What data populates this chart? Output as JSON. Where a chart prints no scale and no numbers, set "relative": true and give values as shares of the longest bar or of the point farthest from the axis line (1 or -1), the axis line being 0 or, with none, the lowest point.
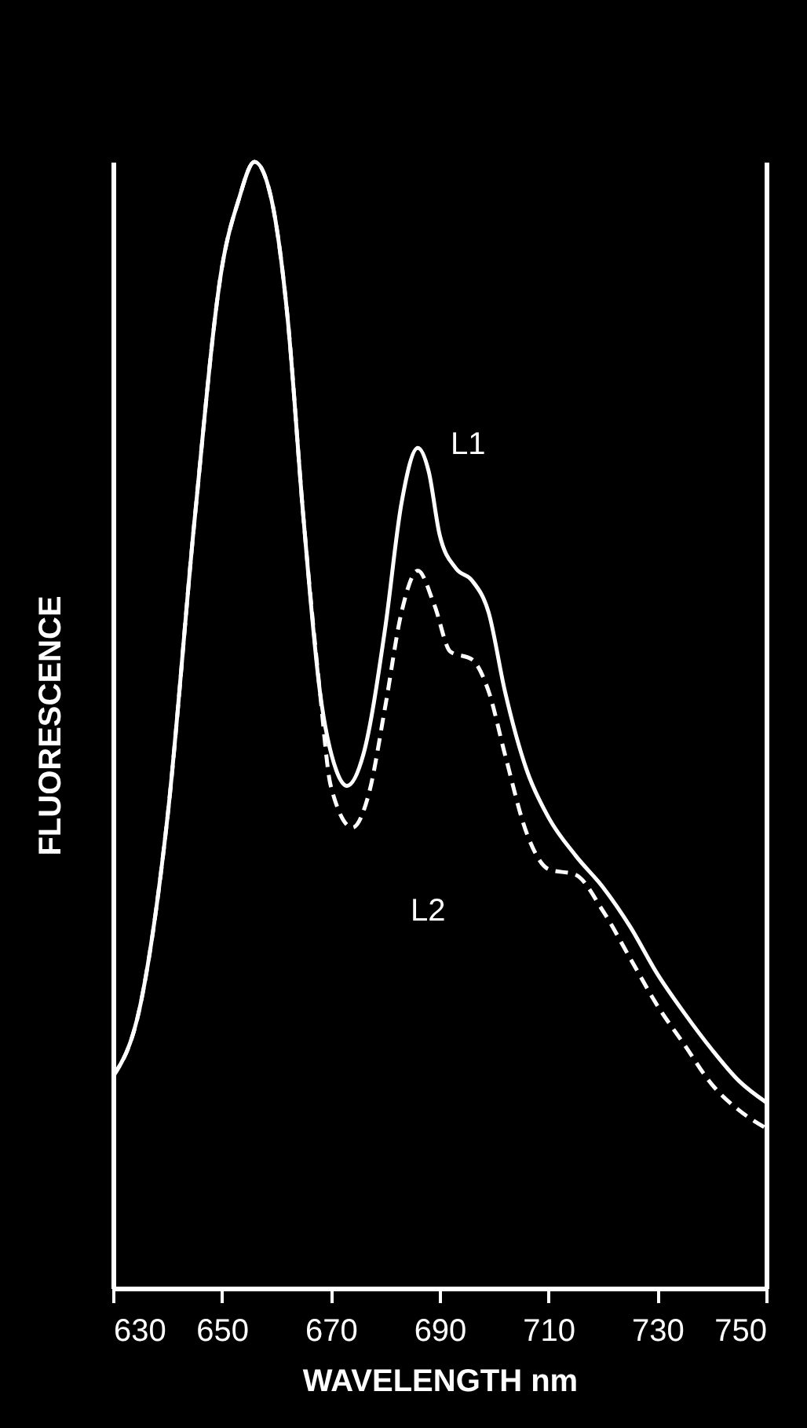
{
  "chart_data": {
    "type": "line",
    "relative": true,
    "xlabel": "WAVELENGTH  nm",
    "ylabel": "FLUORESCENCE",
    "xlim": [
      630,
      750
    ],
    "xticks": [
      630,
      650,
      670,
      690,
      710,
      730,
      750
    ],
    "marker": "none",
    "series": [
      {
        "name": "L1",
        "color": "#ffffff",
        "line_style": "solid",
        "x": [
          630,
          635,
          640,
          645,
          650,
          653,
          656,
          659,
          662,
          665,
          668,
          671,
          673,
          676,
          680,
          683,
          686,
          688,
          690,
          693,
          696,
          699,
          702,
          706,
          710,
          715,
          720,
          725,
          730,
          735,
          740,
          745,
          750
        ],
        "values": [
          0.188,
          0.251,
          0.418,
          0.683,
          0.906,
          0.965,
          1.0,
          0.969,
          0.865,
          0.683,
          0.53,
          0.46,
          0.446,
          0.474,
          0.586,
          0.697,
          0.746,
          0.725,
          0.669,
          0.639,
          0.628,
          0.6,
          0.53,
          0.46,
          0.418,
          0.384,
          0.356,
          0.321,
          0.279,
          0.244,
          0.212,
          0.184,
          0.165
        ]
      },
      {
        "name": "L2",
        "color": "#ffffff",
        "line_style": "dashed",
        "x": [
          630,
          635,
          640,
          645,
          650,
          653,
          656,
          659,
          662,
          665,
          668,
          670,
          674,
          677,
          680,
          683,
          686,
          689,
          692,
          696,
          699,
          702,
          706,
          710,
          715,
          720,
          725,
          730,
          735,
          740,
          745,
          750
        ],
        "values": [
          0.188,
          0.251,
          0.418,
          0.683,
          0.906,
          0.965,
          1.0,
          0.969,
          0.865,
          0.683,
          0.53,
          0.446,
          0.409,
          0.439,
          0.516,
          0.6,
          0.637,
          0.607,
          0.565,
          0.558,
          0.53,
          0.474,
          0.404,
          0.372,
          0.367,
          0.335,
          0.293,
          0.251,
          0.216,
          0.181,
          0.158,
          0.142
        ]
      }
    ]
  }
}
